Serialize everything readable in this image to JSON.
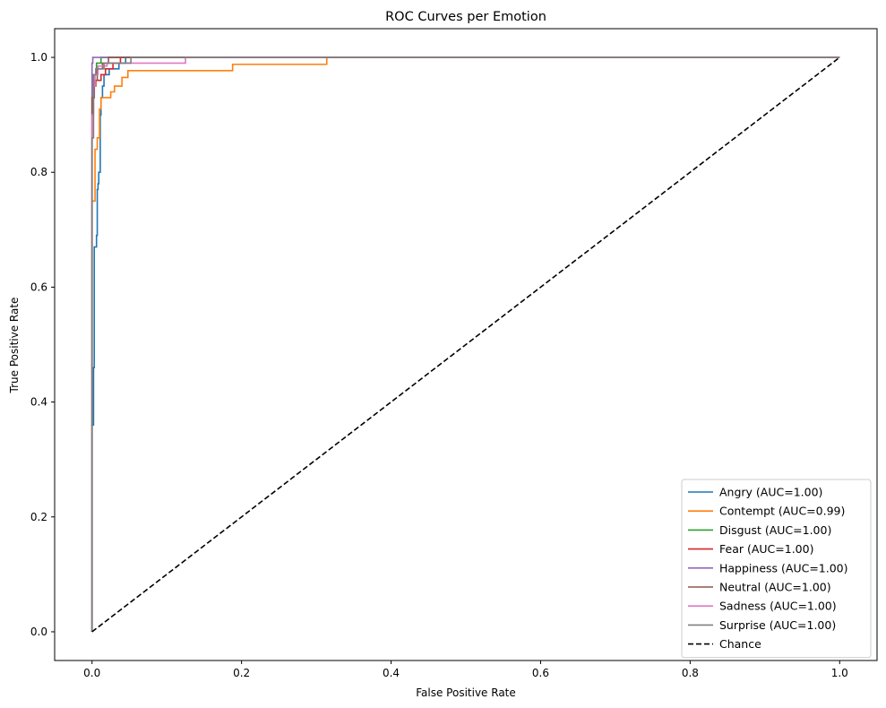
{
  "chart_data": {
    "type": "line",
    "title": "ROC Curves per Emotion",
    "xlabel": "False Positive Rate",
    "ylabel": "True Positive Rate",
    "xlim": [
      -0.05,
      1.05
    ],
    "ylim": [
      -0.05,
      1.05
    ],
    "xticks": [
      0.0,
      0.2,
      0.4,
      0.6,
      0.8,
      1.0
    ],
    "xtick_labels": [
      "0.0",
      "0.2",
      "0.4",
      "0.6",
      "0.8",
      "1.0"
    ],
    "yticks": [
      0.0,
      0.2,
      0.4,
      0.6,
      0.8,
      1.0
    ],
    "ytick_labels": [
      "0.0",
      "0.2",
      "0.4",
      "0.6",
      "0.8",
      "1.0"
    ],
    "grid": false,
    "legend_position": "lower-right",
    "series": [
      {
        "name": "Angry (AUC=1.00)",
        "color": "#1f77b4",
        "style": "solid",
        "points": [
          [
            0,
            0
          ],
          [
            0,
            0.36
          ],
          [
            0.002,
            0.36
          ],
          [
            0.002,
            0.46
          ],
          [
            0.003,
            0.46
          ],
          [
            0.003,
            0.67
          ],
          [
            0.006,
            0.67
          ],
          [
            0.006,
            0.69
          ],
          [
            0.007,
            0.69
          ],
          [
            0.007,
            0.77
          ],
          [
            0.008,
            0.77
          ],
          [
            0.008,
            0.78
          ],
          [
            0.009,
            0.78
          ],
          [
            0.009,
            0.8
          ],
          [
            0.011,
            0.8
          ],
          [
            0.011,
            0.9
          ],
          [
            0.012,
            0.9
          ],
          [
            0.012,
            0.93
          ],
          [
            0.014,
            0.93
          ],
          [
            0.014,
            0.95
          ],
          [
            0.016,
            0.95
          ],
          [
            0.016,
            0.97
          ],
          [
            0.023,
            0.97
          ],
          [
            0.023,
            0.98
          ],
          [
            0.036,
            0.98
          ],
          [
            0.036,
            0.99
          ],
          [
            0.045,
            0.99
          ],
          [
            0.045,
            1.0
          ],
          [
            1.0,
            1.0
          ]
        ]
      },
      {
        "name": "Contempt (AUC=0.99)",
        "color": "#ff7f0e",
        "style": "solid",
        "points": [
          [
            0,
            0
          ],
          [
            0,
            0.75
          ],
          [
            0.004,
            0.75
          ],
          [
            0.004,
            0.84
          ],
          [
            0.007,
            0.84
          ],
          [
            0.007,
            0.86
          ],
          [
            0.01,
            0.86
          ],
          [
            0.01,
            0.91
          ],
          [
            0.012,
            0.91
          ],
          [
            0.012,
            0.93
          ],
          [
            0.025,
            0.93
          ],
          [
            0.025,
            0.94
          ],
          [
            0.03,
            0.94
          ],
          [
            0.03,
            0.95
          ],
          [
            0.04,
            0.95
          ],
          [
            0.04,
            0.965
          ],
          [
            0.048,
            0.965
          ],
          [
            0.048,
            0.977
          ],
          [
            0.188,
            0.977
          ],
          [
            0.188,
            0.988
          ],
          [
            0.314,
            0.988
          ],
          [
            0.314,
            1.0
          ],
          [
            1.0,
            1.0
          ]
        ]
      },
      {
        "name": "Disgust (AUC=1.00)",
        "color": "#2ca02c",
        "style": "solid",
        "points": [
          [
            0,
            0
          ],
          [
            0,
            0.94
          ],
          [
            0.002,
            0.94
          ],
          [
            0.002,
            0.97
          ],
          [
            0.006,
            0.97
          ],
          [
            0.006,
            0.99
          ],
          [
            0.012,
            0.99
          ],
          [
            0.012,
            1.0
          ],
          [
            1.0,
            1.0
          ]
        ]
      },
      {
        "name": "Fear (AUC=1.00)",
        "color": "#d62728",
        "style": "solid",
        "points": [
          [
            0,
            0
          ],
          [
            0,
            0.93
          ],
          [
            0.003,
            0.93
          ],
          [
            0.003,
            0.95
          ],
          [
            0.005,
            0.95
          ],
          [
            0.005,
            0.96
          ],
          [
            0.012,
            0.96
          ],
          [
            0.012,
            0.97
          ],
          [
            0.018,
            0.97
          ],
          [
            0.018,
            0.98
          ],
          [
            0.028,
            0.98
          ],
          [
            0.028,
            0.99
          ],
          [
            0.038,
            0.99
          ],
          [
            0.038,
            1.0
          ],
          [
            1.0,
            1.0
          ]
        ]
      },
      {
        "name": "Happiness (AUC=1.00)",
        "color": "#9467bd",
        "style": "solid",
        "points": [
          [
            0,
            0
          ],
          [
            0,
            0.99
          ],
          [
            0.001,
            0.99
          ],
          [
            0.001,
            1.0
          ],
          [
            1.0,
            1.0
          ]
        ]
      },
      {
        "name": "Neutral (AUC=1.00)",
        "color": "#8c564b",
        "style": "solid",
        "points": [
          [
            0,
            0
          ],
          [
            0,
            0.93
          ],
          [
            0.003,
            0.93
          ],
          [
            0.003,
            0.96
          ],
          [
            0.007,
            0.96
          ],
          [
            0.007,
            0.98
          ],
          [
            0.014,
            0.98
          ],
          [
            0.014,
            0.99
          ],
          [
            0.022,
            0.99
          ],
          [
            0.022,
            1.0
          ],
          [
            1.0,
            1.0
          ]
        ]
      },
      {
        "name": "Sadness (AUC=1.00)",
        "color": "#e377c2",
        "style": "solid",
        "points": [
          [
            0,
            0
          ],
          [
            0,
            0.9
          ],
          [
            0.002,
            0.9
          ],
          [
            0.002,
            0.95
          ],
          [
            0.004,
            0.95
          ],
          [
            0.004,
            0.97
          ],
          [
            0.008,
            0.97
          ],
          [
            0.008,
            0.985
          ],
          [
            0.02,
            0.985
          ],
          [
            0.02,
            0.99
          ],
          [
            0.125,
            0.99
          ],
          [
            0.125,
            1.0
          ],
          [
            1.0,
            1.0
          ]
        ]
      },
      {
        "name": "Surprise (AUC=1.00)",
        "color": "#7f7f7f",
        "style": "solid",
        "points": [
          [
            0,
            0
          ],
          [
            0,
            0.86
          ],
          [
            0.002,
            0.86
          ],
          [
            0.002,
            0.97
          ],
          [
            0.005,
            0.97
          ],
          [
            0.005,
            0.98
          ],
          [
            0.016,
            0.98
          ],
          [
            0.016,
            0.99
          ],
          [
            0.052,
            0.99
          ],
          [
            0.052,
            1.0
          ],
          [
            1.0,
            1.0
          ]
        ]
      },
      {
        "name": "Chance",
        "color": "#000000",
        "style": "dashed",
        "points": [
          [
            0,
            0
          ],
          [
            1,
            1
          ]
        ]
      }
    ]
  }
}
